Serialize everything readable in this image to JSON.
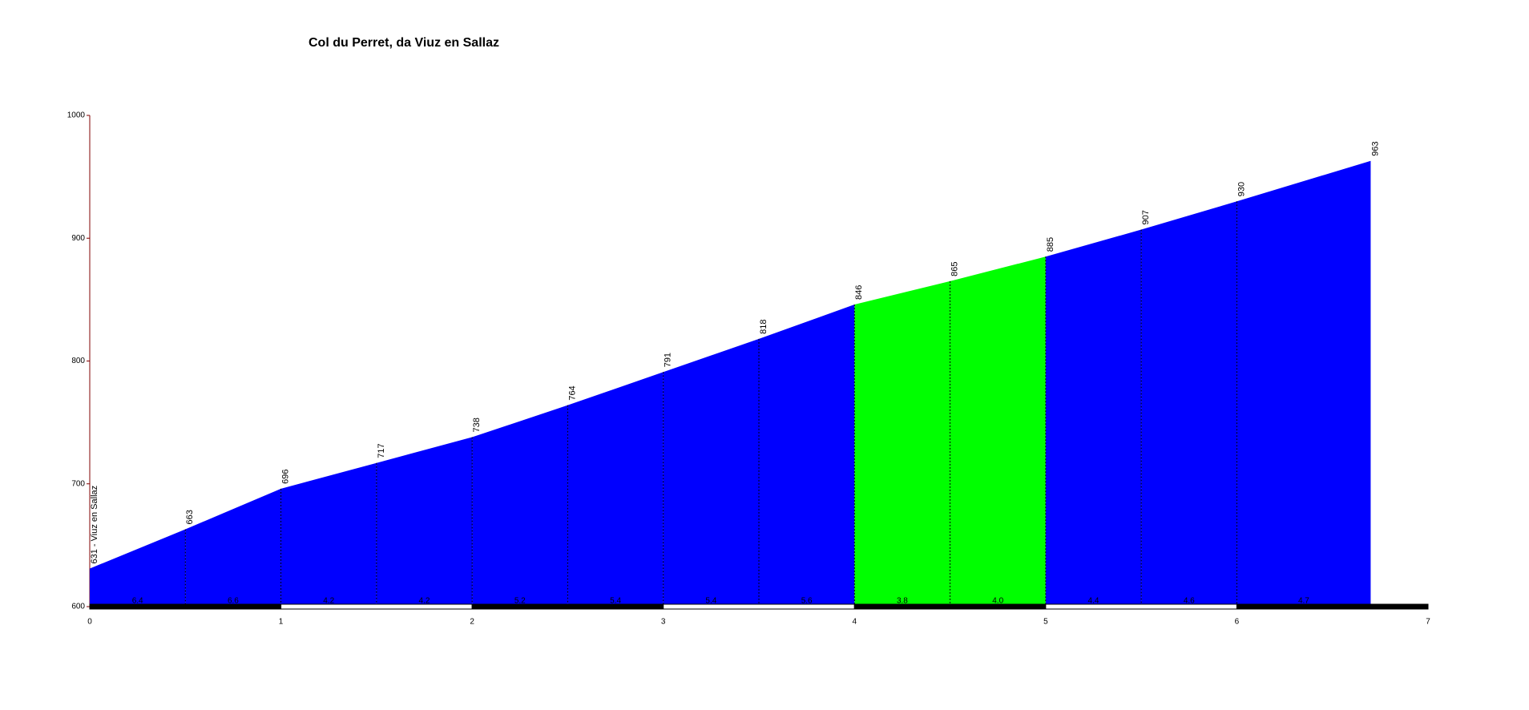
{
  "chart_data": {
    "type": "area",
    "title": "Col du Perret, da Viuz en Sallaz",
    "x": [
      0,
      0.5,
      1,
      1.5,
      2,
      2.5,
      3,
      3.5,
      4,
      4.5,
      5,
      5.5,
      6,
      6.7
    ],
    "values": [
      631,
      663,
      696,
      717,
      738,
      764,
      791,
      818,
      846,
      865,
      885,
      907,
      930,
      963
    ],
    "value_labels": [
      "631 - Viuz en Sallaz",
      "663",
      "696",
      "717",
      "738",
      "764",
      "791",
      "818",
      "846",
      "865",
      "885",
      "907",
      "930",
      "963"
    ],
    "gradients": [
      6.4,
      6.6,
      4.2,
      4.2,
      5.2,
      5.4,
      5.4,
      5.6,
      3.8,
      4.0,
      4.4,
      4.6,
      4.7
    ],
    "gradient_labels": [
      "6.4",
      "6.6",
      "4.2",
      "4.2",
      "5.2",
      "5.4",
      "5.4",
      "5.6",
      "3.8",
      "4.0",
      "4.4",
      "4.6",
      "4.7"
    ],
    "segment_colors": [
      "#0000ff",
      "#0000ff",
      "#0000ff",
      "#0000ff",
      "#0000ff",
      "#0000ff",
      "#0000ff",
      "#0000ff",
      "#00ff00",
      "#00ff00",
      "#0000ff",
      "#0000ff",
      "#0000ff"
    ],
    "xlim": [
      0,
      7
    ],
    "xticks": [
      0,
      1,
      2,
      3,
      4,
      5,
      6,
      7
    ],
    "ylim": [
      600,
      1000
    ],
    "yticks": [
      600,
      700,
      800,
      900,
      1000
    ]
  }
}
